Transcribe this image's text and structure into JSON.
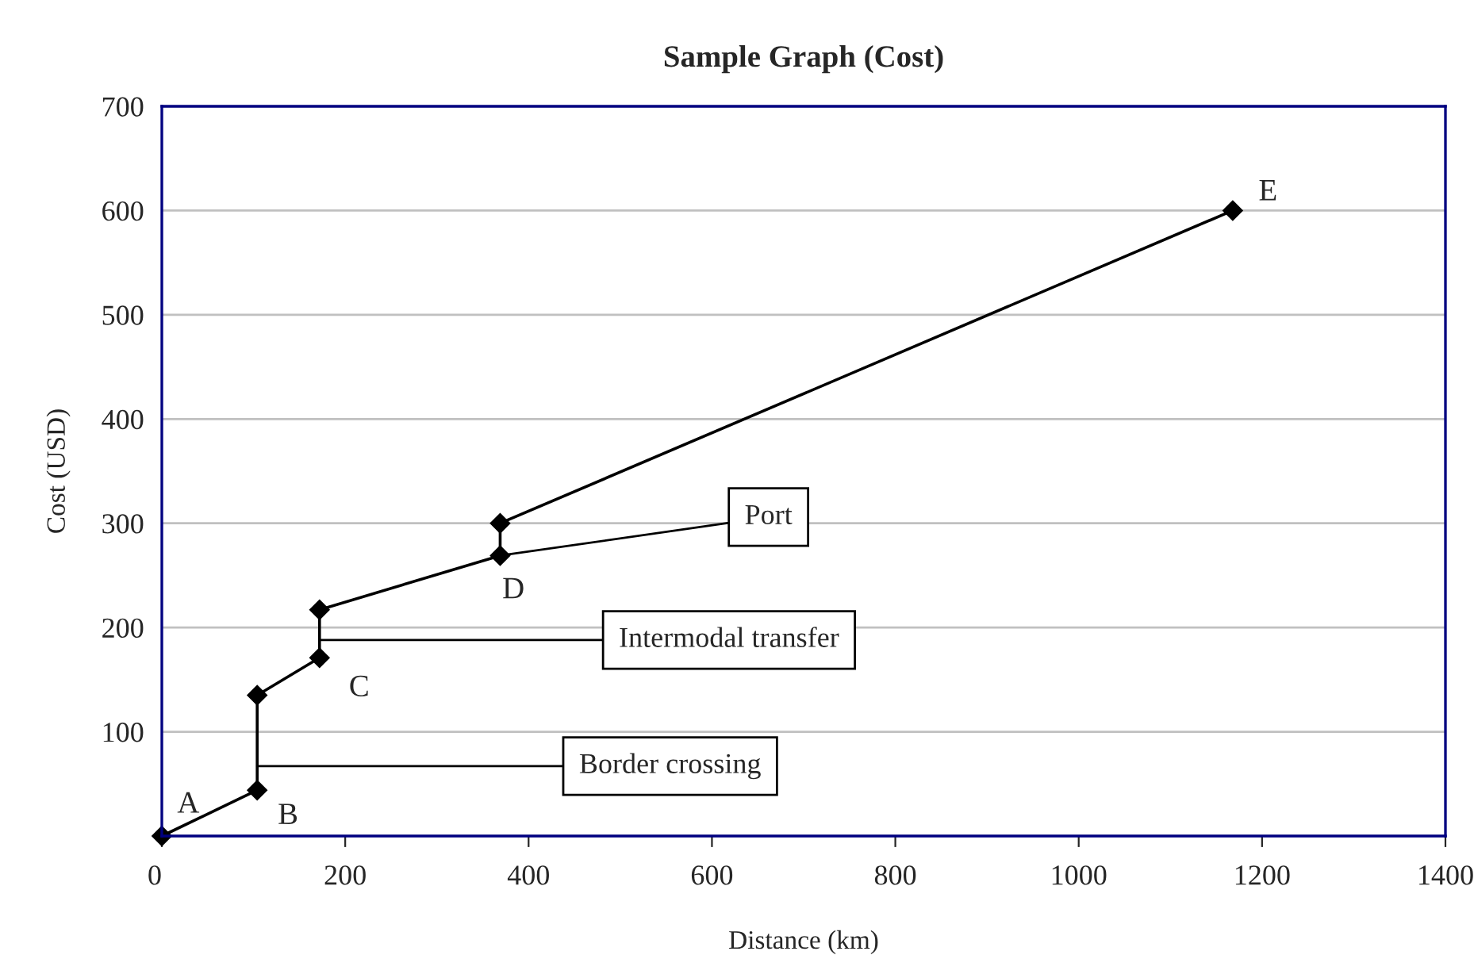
{
  "chart_data": {
    "type": "line",
    "title": "Sample Graph (Cost)",
    "xlabel": "Distance (km)",
    "ylabel": "Cost (USD)",
    "series": [
      {
        "color": "#000000",
        "x": [
          0,
          104,
          104,
          172,
          172,
          369,
          369,
          1168
        ],
        "values": [
          0,
          44,
          135,
          171,
          217,
          269,
          300,
          600
        ]
      }
    ],
    "xlim": [
      0,
      1400
    ],
    "xticks": [
      0,
      200,
      400,
      600,
      800,
      1000,
      1200,
      1400
    ],
    "ylim": [
      0,
      700
    ],
    "yticks": [
      {
        "value": 0,
        "label": null
      },
      100,
      200,
      300,
      400,
      500,
      600,
      700
    ],
    "grid": "y",
    "marker": "diamond",
    "line_style": "solid",
    "annotations": [
      {
        "text": "A",
        "x": 0,
        "y": 0
      },
      {
        "text": "B",
        "x": 104,
        "y": 44
      },
      {
        "text": "C",
        "x": 172,
        "y": 171
      },
      {
        "text": "D",
        "x": 369,
        "y": 269
      },
      {
        "text": "E",
        "x": 1168,
        "y": 600
      },
      {
        "text": "Border crossing",
        "x": 104,
        "y": 67
      },
      {
        "text": "Intermodal transfer",
        "x": 172,
        "y": 188
      },
      {
        "text": "Port",
        "x": 369,
        "y": 269
      }
    ]
  }
}
